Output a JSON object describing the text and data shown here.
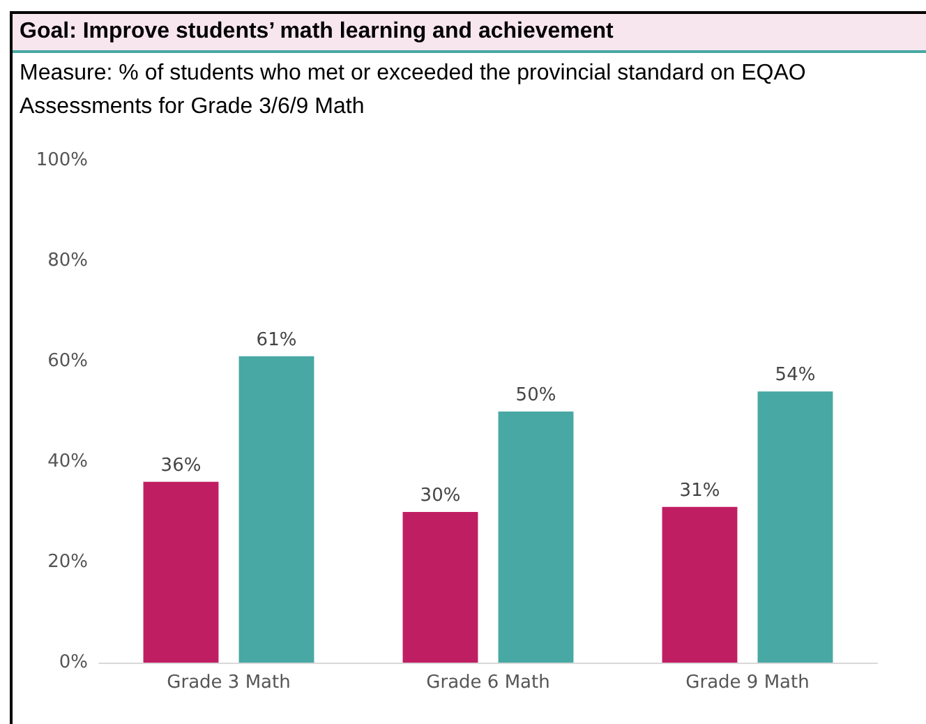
{
  "chart_data": {
    "type": "bar",
    "title": "Goal: Improve students’ math learning and achievement",
    "subtitle": "Measure: % of students who met or exceeded the provincial standard on EQAO Assessments for Grade 3/6/9 Math",
    "categories": [
      "Grade 3 Math",
      "Grade 6 Math",
      "Grade 9 Math"
    ],
    "series": [
      {
        "color": "#c01e63",
        "values": [
          36,
          30,
          31
        ],
        "value_labels": [
          "36%",
          "30%",
          "31%"
        ]
      },
      {
        "color": "#48a8a3",
        "values": [
          61,
          50,
          54
        ],
        "value_labels": [
          "61%",
          "50%",
          "54%"
        ]
      }
    ],
    "ylim": [
      0,
      100
    ],
    "yticks": [
      {
        "value": 0,
        "label": "0%"
      },
      {
        "value": 20,
        "label": "20%"
      },
      {
        "value": 40,
        "label": "40%"
      },
      {
        "value": 60,
        "label": "60%"
      },
      {
        "value": 80,
        "label": "80%"
      },
      {
        "value": 100,
        "label": "100%"
      }
    ],
    "grid": false
  }
}
